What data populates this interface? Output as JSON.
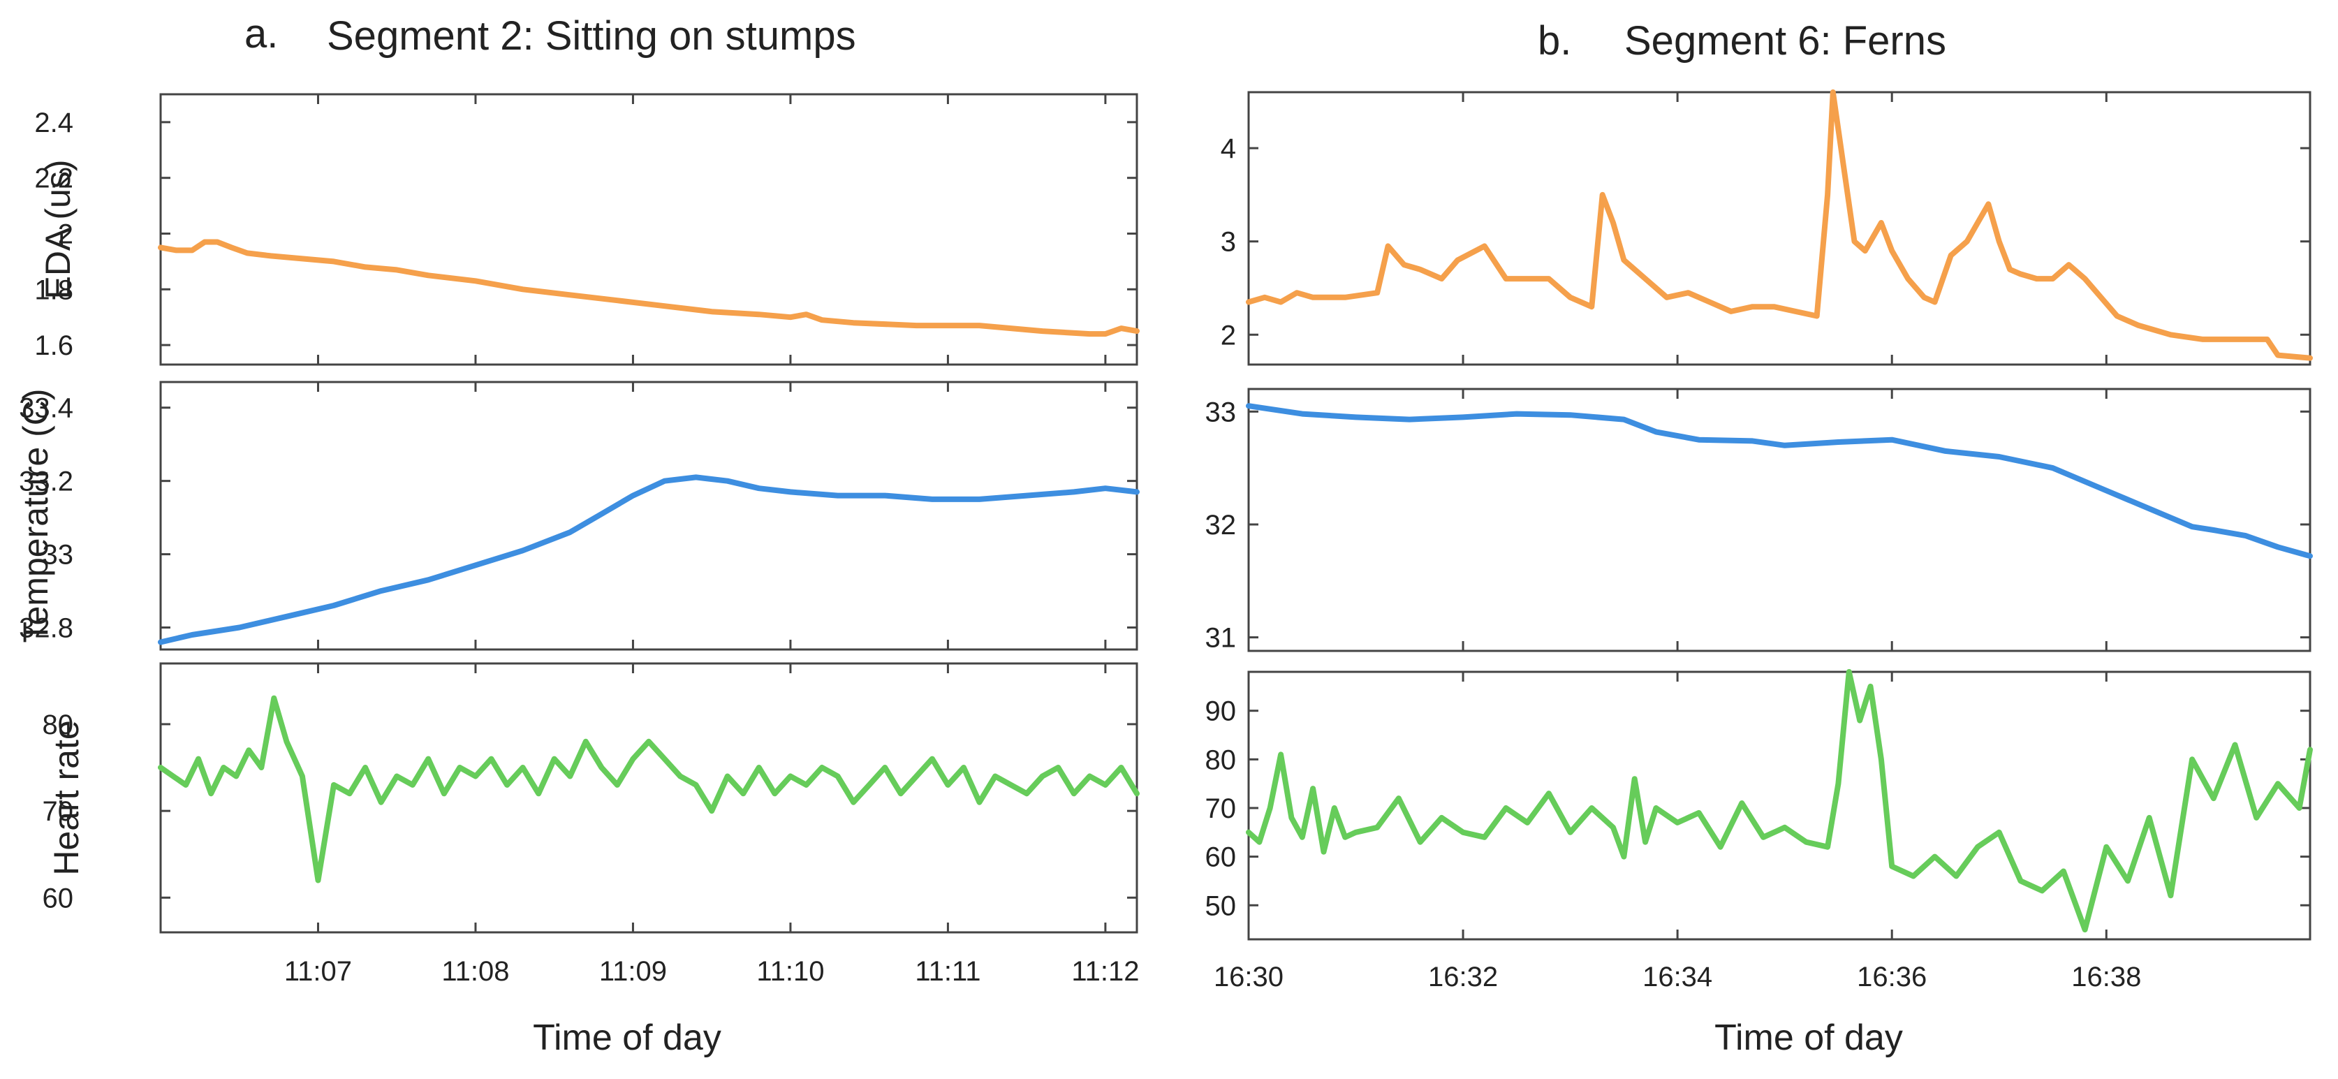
{
  "chart_data": [
    {
      "type": "line",
      "panel": "a",
      "letter": "a.",
      "title": "Segment 2: Sitting on stumps",
      "xlabel": "Time of day",
      "xlim": [
        0,
        6.2
      ],
      "x_ticks": [
        {
          "v": 1,
          "label": "11:07"
        },
        {
          "v": 2,
          "label": "11:08"
        },
        {
          "v": 3,
          "label": "11:09"
        },
        {
          "v": 4,
          "label": "11:10"
        },
        {
          "v": 5,
          "label": "11:11"
        },
        {
          "v": 6,
          "label": "11:12"
        }
      ],
      "subplots": [
        {
          "name": "eda",
          "ylabel": "EDA (us)",
          "color": "#f5a04b",
          "ylim": [
            1.53,
            2.5
          ],
          "y_ticks": [
            {
              "v": 1.6,
              "label": "1.6"
            },
            {
              "v": 1.8,
              "label": "1.8"
            },
            {
              "v": 2.0,
              "label": "2"
            },
            {
              "v": 2.2,
              "label": "2.2"
            },
            {
              "v": 2.4,
              "label": "2.4"
            }
          ],
          "series": [
            {
              "name": "EDA",
              "x": [
                0,
                0.1,
                0.2,
                0.28,
                0.36,
                0.45,
                0.55,
                0.7,
                0.9,
                1.1,
                1.3,
                1.5,
                1.7,
                2.0,
                2.3,
                2.6,
                2.9,
                3.2,
                3.5,
                3.8,
                4.0,
                4.1,
                4.2,
                4.4,
                4.8,
                5.2,
                5.6,
                5.9,
                6.0,
                6.1,
                6.2
              ],
              "values": [
                1.95,
                1.94,
                1.94,
                1.97,
                1.97,
                1.95,
                1.93,
                1.92,
                1.91,
                1.9,
                1.88,
                1.87,
                1.85,
                1.83,
                1.8,
                1.78,
                1.76,
                1.74,
                1.72,
                1.71,
                1.7,
                1.71,
                1.69,
                1.68,
                1.67,
                1.67,
                1.65,
                1.64,
                1.64,
                1.66,
                1.65
              ]
            }
          ]
        },
        {
          "name": "temperature",
          "ylabel": "Temperature (C)",
          "color": "#3d8ee0",
          "ylim": [
            32.74,
            33.47
          ],
          "y_ticks": [
            {
              "v": 32.8,
              "label": "32.8"
            },
            {
              "v": 33.0,
              "label": "33"
            },
            {
              "v": 33.2,
              "label": "33.2"
            },
            {
              "v": 33.4,
              "label": "33.4"
            }
          ],
          "series": [
            {
              "name": "Temperature",
              "x": [
                0,
                0.2,
                0.5,
                0.8,
                1.1,
                1.4,
                1.7,
                2.0,
                2.3,
                2.6,
                2.8,
                3.0,
                3.2,
                3.4,
                3.6,
                3.8,
                4.0,
                4.3,
                4.6,
                4.9,
                5.2,
                5.5,
                5.8,
                6.0,
                6.2
              ],
              "values": [
                32.76,
                32.78,
                32.8,
                32.83,
                32.86,
                32.9,
                32.93,
                32.97,
                33.01,
                33.06,
                33.11,
                33.16,
                33.2,
                33.21,
                33.2,
                33.18,
                33.17,
                33.16,
                33.16,
                33.15,
                33.15,
                33.16,
                33.17,
                33.18,
                33.17
              ]
            }
          ]
        },
        {
          "name": "heart-rate",
          "ylabel": "Heart rate",
          "color": "#66cc5a",
          "ylim": [
            56,
            87
          ],
          "y_ticks": [
            {
              "v": 60,
              "label": "60"
            },
            {
              "v": 70,
              "label": "70"
            },
            {
              "v": 80,
              "label": "80"
            }
          ],
          "series": [
            {
              "name": "Heart rate",
              "x": [
                0,
                0.08,
                0.16,
                0.24,
                0.32,
                0.4,
                0.48,
                0.56,
                0.64,
                0.72,
                0.8,
                0.9,
                1.0,
                1.1,
                1.2,
                1.3,
                1.4,
                1.5,
                1.6,
                1.7,
                1.8,
                1.9,
                2.0,
                2.1,
                2.2,
                2.3,
                2.4,
                2.5,
                2.6,
                2.7,
                2.8,
                2.9,
                3.0,
                3.1,
                3.2,
                3.3,
                3.4,
                3.5,
                3.6,
                3.7,
                3.8,
                3.9,
                4.0,
                4.1,
                4.2,
                4.3,
                4.4,
                4.5,
                4.6,
                4.7,
                4.8,
                4.9,
                5.0,
                5.1,
                5.2,
                5.3,
                5.4,
                5.5,
                5.6,
                5.7,
                5.8,
                5.9,
                6.0,
                6.1,
                6.2
              ],
              "values": [
                75,
                74,
                73,
                76,
                72,
                75,
                74,
                77,
                75,
                83,
                78,
                74,
                62,
                73,
                72,
                75,
                71,
                74,
                73,
                76,
                72,
                75,
                74,
                76,
                73,
                75,
                72,
                76,
                74,
                78,
                75,
                73,
                76,
                78,
                76,
                74,
                73,
                70,
                74,
                72,
                75,
                72,
                74,
                73,
                75,
                74,
                71,
                73,
                75,
                72,
                74,
                76,
                73,
                75,
                71,
                74,
                73,
                72,
                74,
                75,
                72,
                74,
                73,
                75,
                72
              ]
            }
          ]
        }
      ]
    },
    {
      "type": "line",
      "panel": "b",
      "letter": "b.",
      "title": "Segment 6: Ferns",
      "xlabel": "Time of day",
      "xlim": [
        0,
        9.9
      ],
      "x_ticks": [
        {
          "v": 0,
          "label": "16:30"
        },
        {
          "v": 2,
          "label": "16:32"
        },
        {
          "v": 4,
          "label": "16:34"
        },
        {
          "v": 6,
          "label": "16:36"
        },
        {
          "v": 8,
          "label": "16:38"
        }
      ],
      "subplots": [
        {
          "name": "eda",
          "ylabel": "",
          "color": "#f5a04b",
          "ylim": [
            1.68,
            4.6
          ],
          "y_ticks": [
            {
              "v": 2,
              "label": "2"
            },
            {
              "v": 3,
              "label": "3"
            },
            {
              "v": 4,
              "label": "4"
            }
          ],
          "series": [
            {
              "name": "EDA",
              "x": [
                0,
                0.15,
                0.3,
                0.45,
                0.6,
                0.9,
                1.2,
                1.3,
                1.45,
                1.6,
                1.8,
                1.95,
                2.2,
                2.4,
                2.6,
                2.8,
                3.0,
                3.2,
                3.3,
                3.4,
                3.5,
                3.7,
                3.9,
                4.1,
                4.3,
                4.5,
                4.7,
                4.9,
                5.1,
                5.3,
                5.4,
                5.45,
                5.55,
                5.65,
                5.75,
                5.9,
                6.0,
                6.15,
                6.3,
                6.4,
                6.55,
                6.7,
                6.8,
                6.9,
                7.0,
                7.1,
                7.2,
                7.35,
                7.5,
                7.65,
                7.8,
                7.95,
                8.1,
                8.3,
                8.6,
                8.9,
                9.2,
                9.5,
                9.6,
                9.9
              ],
              "values": [
                2.35,
                2.4,
                2.35,
                2.45,
                2.4,
                2.4,
                2.45,
                2.95,
                2.75,
                2.7,
                2.6,
                2.8,
                2.95,
                2.6,
                2.6,
                2.6,
                2.4,
                2.3,
                3.5,
                3.2,
                2.8,
                2.6,
                2.4,
                2.45,
                2.35,
                2.25,
                2.3,
                2.3,
                2.25,
                2.2,
                3.5,
                4.6,
                3.8,
                3.0,
                2.9,
                3.2,
                2.9,
                2.6,
                2.4,
                2.35,
                2.85,
                3.0,
                3.2,
                3.4,
                3.0,
                2.7,
                2.65,
                2.6,
                2.6,
                2.75,
                2.6,
                2.4,
                2.2,
                2.1,
                2.0,
                1.95,
                1.95,
                1.95,
                1.78,
                1.75
              ]
            }
          ]
        },
        {
          "name": "temperature",
          "ylabel": "",
          "color": "#3d8ee0",
          "ylim": [
            30.88,
            33.2
          ],
          "y_ticks": [
            {
              "v": 31,
              "label": "31"
            },
            {
              "v": 32,
              "label": "32"
            },
            {
              "v": 33,
              "label": "33"
            }
          ],
          "series": [
            {
              "name": "Temperature",
              "x": [
                0,
                0.5,
                1.0,
                1.5,
                2.0,
                2.5,
                3.0,
                3.5,
                3.8,
                4.2,
                4.7,
                5.0,
                5.5,
                6.0,
                6.5,
                7.0,
                7.5,
                8.0,
                8.5,
                8.8,
                9.0,
                9.3,
                9.6,
                9.9
              ],
              "values": [
                33.05,
                32.98,
                32.95,
                32.93,
                32.95,
                32.98,
                32.97,
                32.93,
                32.82,
                32.75,
                32.74,
                32.7,
                32.73,
                32.75,
                32.65,
                32.6,
                32.5,
                32.3,
                32.1,
                31.98,
                31.95,
                31.9,
                31.8,
                31.72
              ]
            }
          ]
        },
        {
          "name": "heart-rate",
          "ylabel": "",
          "color": "#66cc5a",
          "ylim": [
            43,
            98
          ],
          "y_ticks": [
            {
              "v": 50,
              "label": "50"
            },
            {
              "v": 60,
              "label": "60"
            },
            {
              "v": 70,
              "label": "70"
            },
            {
              "v": 80,
              "label": "80"
            },
            {
              "v": 90,
              "label": "90"
            }
          ],
          "series": [
            {
              "name": "Heart rate",
              "x": [
                0,
                0.1,
                0.2,
                0.3,
                0.4,
                0.5,
                0.6,
                0.7,
                0.8,
                0.9,
                1.0,
                1.2,
                1.4,
                1.6,
                1.8,
                2.0,
                2.2,
                2.4,
                2.6,
                2.8,
                3.0,
                3.2,
                3.4,
                3.5,
                3.6,
                3.7,
                3.8,
                4.0,
                4.2,
                4.4,
                4.6,
                4.8,
                5.0,
                5.2,
                5.4,
                5.5,
                5.6,
                5.7,
                5.8,
                5.9,
                6.0,
                6.2,
                6.4,
                6.6,
                6.8,
                7.0,
                7.2,
                7.4,
                7.6,
                7.8,
                8.0,
                8.2,
                8.4,
                8.6,
                8.8,
                9.0,
                9.2,
                9.4,
                9.6,
                9.8,
                9.9
              ],
              "values": [
                65,
                63,
                70,
                81,
                68,
                64,
                74,
                61,
                70,
                64,
                65,
                66,
                72,
                63,
                68,
                65,
                64,
                70,
                67,
                73,
                65,
                70,
                66,
                60,
                76,
                63,
                70,
                67,
                69,
                62,
                71,
                64,
                66,
                63,
                62,
                75,
                98,
                88,
                95,
                80,
                58,
                56,
                60,
                56,
                62,
                65,
                55,
                53,
                57,
                45,
                62,
                55,
                68,
                52,
                80,
                72,
                83,
                68,
                75,
                70,
                82
              ]
            }
          ]
        }
      ]
    }
  ]
}
